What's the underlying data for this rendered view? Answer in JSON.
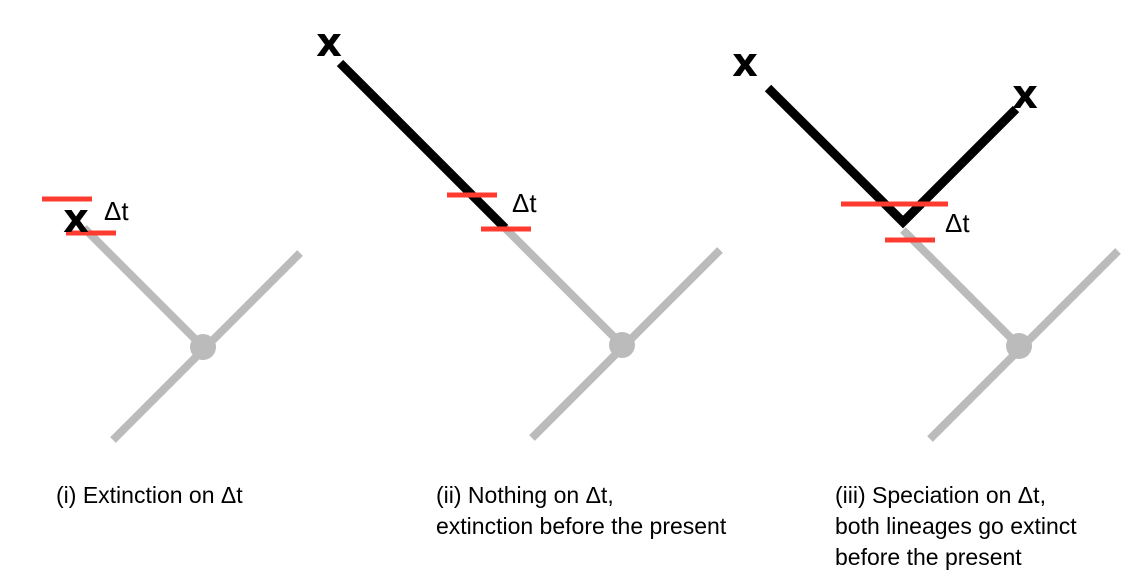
{
  "colors": {
    "background": "#ffffff",
    "past_tree": "#bbbbbb",
    "lineage": "#000000",
    "interval_marker": "#ff3b30"
  },
  "panels": [
    {
      "delta_label": "Δt",
      "extinct_markers": [
        "x"
      ],
      "caption": [
        "(i) Extinction on Δt"
      ]
    },
    {
      "delta_label": "Δt",
      "extinct_markers": [
        "x"
      ],
      "caption": [
        "(ii) Nothing on Δt,",
        "extinction before the present"
      ]
    },
    {
      "delta_label": "Δt",
      "extinct_markers": [
        "x",
        "x"
      ],
      "caption": [
        "(iii) Speciation on Δt,",
        "both lineages go extinct",
        "before the present"
      ]
    }
  ]
}
